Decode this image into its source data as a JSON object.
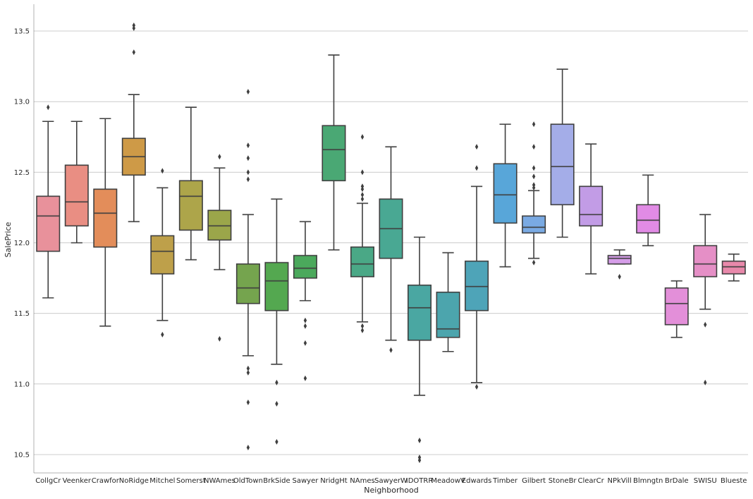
{
  "chart_data": {
    "type": "box",
    "title": "",
    "xlabel": "Neighborhood",
    "ylabel": "SalePrice",
    "ylim": [
      10.37,
      13.69
    ],
    "yticks": [
      "10.5",
      "11.0",
      "11.5",
      "12.0",
      "12.5",
      "13.0",
      "13.5"
    ],
    "grid": "horizontal",
    "categories": [
      {
        "name": "CollgCr",
        "color": "#e8919b",
        "q1": 11.94,
        "median": 12.19,
        "q3": 12.33,
        "whislo": 11.61,
        "whishi": 12.86,
        "fliers": [
          12.96
        ]
      },
      {
        "name": "Veenker",
        "color": "#e98e83",
        "q1": 12.12,
        "median": 12.29,
        "q3": 12.55,
        "whislo": 12.0,
        "whishi": 12.86,
        "fliers": []
      },
      {
        "name": "Crawfor",
        "color": "#e38d5a",
        "q1": 11.97,
        "median": 12.21,
        "q3": 12.38,
        "whislo": 11.41,
        "whishi": 12.88,
        "fliers": []
      },
      {
        "name": "NoRidge",
        "color": "#ce9a47",
        "q1": 12.48,
        "median": 12.61,
        "q3": 12.74,
        "whislo": 12.15,
        "whishi": 13.05,
        "fliers": [
          13.35,
          13.52,
          13.54
        ]
      },
      {
        "name": "Mitchel",
        "color": "#bea04a",
        "q1": 11.78,
        "median": 11.94,
        "q3": 12.05,
        "whislo": 11.45,
        "whishi": 12.39,
        "fliers": [
          12.51,
          11.35
        ]
      },
      {
        "name": "Somerst",
        "color": "#ada54a",
        "q1": 12.09,
        "median": 12.33,
        "q3": 12.44,
        "whislo": 11.88,
        "whishi": 12.96,
        "fliers": []
      },
      {
        "name": "NWAmes",
        "color": "#9ba64a",
        "q1": 12.02,
        "median": 12.12,
        "q3": 12.23,
        "whislo": 11.81,
        "whishi": 12.53,
        "fliers": [
          12.61,
          11.32
        ]
      },
      {
        "name": "OldTown",
        "color": "#75a44e",
        "q1": 11.57,
        "median": 11.68,
        "q3": 11.85,
        "whislo": 11.2,
        "whishi": 12.2,
        "fliers": [
          12.45,
          12.5,
          12.6,
          12.69,
          13.07,
          11.11,
          11.08,
          10.87,
          10.55
        ]
      },
      {
        "name": "BrkSide",
        "color": "#54a850",
        "q1": 11.52,
        "median": 11.73,
        "q3": 11.86,
        "whislo": 11.14,
        "whishi": 12.31,
        "fliers": [
          11.01,
          10.86,
          10.59
        ]
      },
      {
        "name": "Sawyer",
        "color": "#4ba95c",
        "q1": 11.75,
        "median": 11.82,
        "q3": 11.91,
        "whislo": 11.59,
        "whishi": 12.15,
        "fliers": [
          11.45,
          11.41,
          11.29,
          11.04
        ]
      },
      {
        "name": "NridgHt",
        "color": "#4aa874",
        "q1": 12.44,
        "median": 12.66,
        "q3": 12.83,
        "whislo": 11.95,
        "whishi": 13.33,
        "fliers": []
      },
      {
        "name": "NAmes",
        "color": "#4aa886",
        "q1": 11.76,
        "median": 11.85,
        "q3": 11.97,
        "whislo": 11.44,
        "whishi": 12.28,
        "fliers": [
          12.75,
          12.5,
          12.4,
          12.38,
          12.34,
          12.31,
          11.41,
          11.38
        ]
      },
      {
        "name": "SawyerW",
        "color": "#49a893",
        "q1": 11.89,
        "median": 12.1,
        "q3": 12.31,
        "whislo": 11.31,
        "whishi": 12.68,
        "fliers": [
          11.24
        ]
      },
      {
        "name": "IDOTRR",
        "color": "#4aa7a2",
        "q1": 11.31,
        "median": 11.54,
        "q3": 11.7,
        "whislo": 10.92,
        "whishi": 12.04,
        "fliers": [
          10.6,
          10.48,
          10.46
        ]
      },
      {
        "name": "MeadowV",
        "color": "#4ca5ad",
        "q1": 11.33,
        "median": 11.39,
        "q3": 11.65,
        "whislo": 11.23,
        "whishi": 11.93,
        "fliers": []
      },
      {
        "name": "Edwards",
        "color": "#4ea4b8",
        "q1": 11.52,
        "median": 11.69,
        "q3": 11.87,
        "whislo": 11.01,
        "whishi": 12.4,
        "fliers": [
          12.68,
          12.53,
          10.98
        ]
      },
      {
        "name": "Timber",
        "color": "#58a6d9",
        "q1": 12.14,
        "median": 12.34,
        "q3": 12.56,
        "whislo": 11.83,
        "whishi": 12.84,
        "fliers": []
      },
      {
        "name": "Gilbert",
        "color": "#7aaae3",
        "q1": 12.07,
        "median": 12.11,
        "q3": 12.19,
        "whislo": 11.89,
        "whishi": 12.37,
        "fliers": [
          12.84,
          12.68,
          12.53,
          12.47,
          12.41,
          12.39,
          11.86
        ]
      },
      {
        "name": "StoneBr",
        "color": "#a4ade8",
        "q1": 12.27,
        "median": 12.54,
        "q3": 12.84,
        "whislo": 12.04,
        "whishi": 13.23,
        "fliers": []
      },
      {
        "name": "ClearCr",
        "color": "#c29ce6",
        "q1": 12.12,
        "median": 12.2,
        "q3": 12.4,
        "whislo": 11.78,
        "whishi": 12.7,
        "fliers": []
      },
      {
        "name": "NPkVill",
        "color": "#d59de8",
        "q1": 11.85,
        "median": 11.89,
        "q3": 11.91,
        "whislo": 11.85,
        "whishi": 11.95,
        "fliers": [
          11.76
        ]
      },
      {
        "name": "Blmngtn",
        "color": "#e18be5",
        "q1": 12.07,
        "median": 12.16,
        "q3": 12.27,
        "whislo": 11.98,
        "whishi": 12.48,
        "fliers": []
      },
      {
        "name": "BrDale",
        "color": "#e38fd9",
        "q1": 11.42,
        "median": 11.57,
        "q3": 11.68,
        "whislo": 11.33,
        "whishi": 11.73,
        "fliers": []
      },
      {
        "name": "SWISU",
        "color": "#e58fc6",
        "q1": 11.76,
        "median": 11.85,
        "q3": 11.98,
        "whislo": 11.53,
        "whishi": 12.2,
        "fliers": [
          11.42,
          11.01
        ]
      },
      {
        "name": "Blueste",
        "color": "#e888aa",
        "q1": 11.78,
        "median": 11.83,
        "q3": 11.87,
        "whislo": 11.73,
        "whishi": 11.92,
        "fliers": []
      }
    ]
  }
}
